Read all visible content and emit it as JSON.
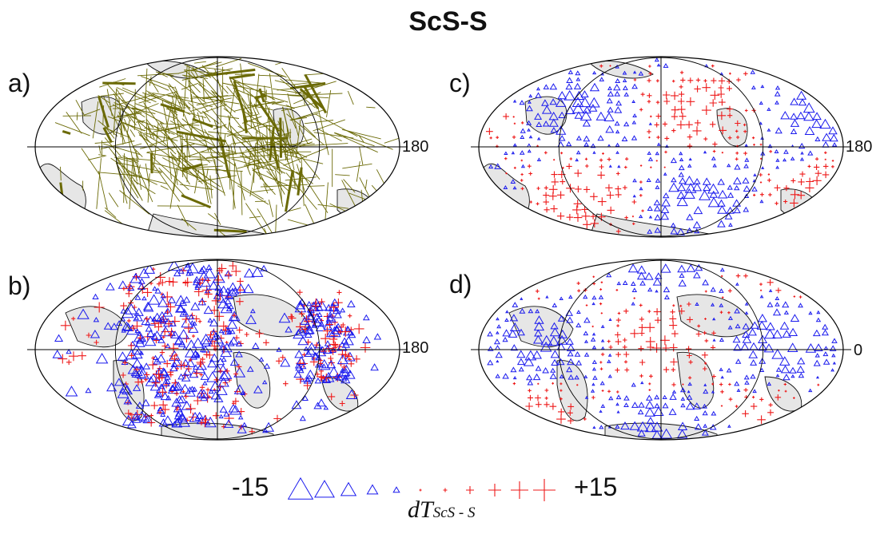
{
  "title": "ScS-S",
  "panels": [
    {
      "id": "a",
      "label": "a)",
      "longitude_label": "180",
      "content": "raypaths"
    },
    {
      "id": "b",
      "label": "b)",
      "longitude_label": "180",
      "content": "observed residuals"
    },
    {
      "id": "c",
      "label": "c)",
      "longitude_label": "180",
      "content": "gridded residuals"
    },
    {
      "id": "d",
      "label": "d)",
      "longitude_label": "0",
      "content": "gridded residuals"
    }
  ],
  "legend": {
    "min_label": "-15",
    "max_label": "+15",
    "variable": "dT",
    "variable_sub": "ScS - S",
    "negative_symbol": "triangle",
    "positive_symbol": "cross"
  },
  "colors": {
    "negative": "#1a1aee",
    "positive": "#ee1a1a",
    "raypath": "#6b6a06",
    "land": "#e6e6e6",
    "coast": "#111111"
  }
}
